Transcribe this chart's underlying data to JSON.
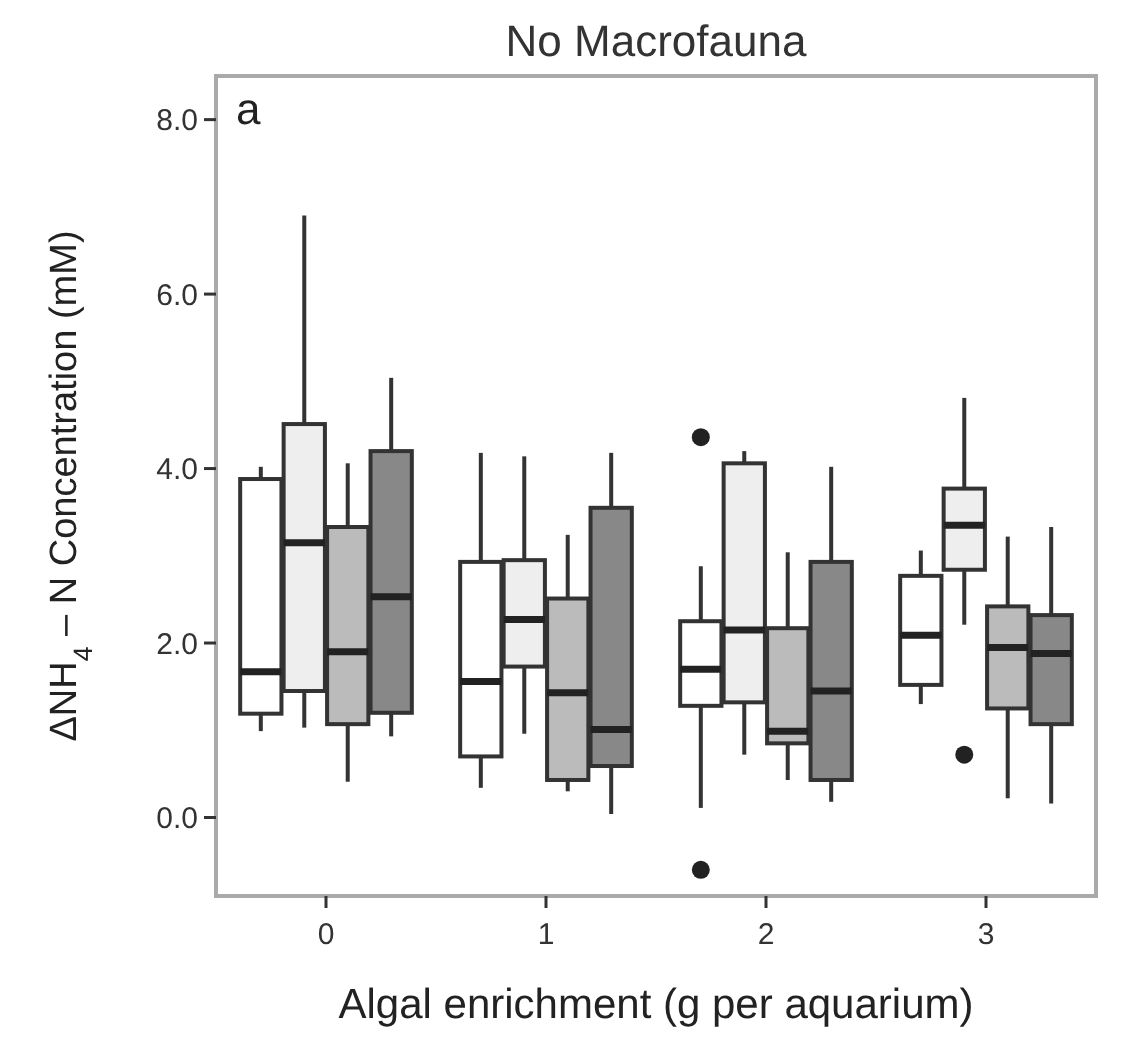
{
  "chart_data": {
    "type": "box",
    "title": "No Macrofauna",
    "xlabel": "Algal enrichment (g per aquarium)",
    "ylabel": "ΔNH$_{4}$ – N Concentration (mM)",
    "annotations": [
      "a"
    ],
    "categories": [
      "0",
      "1",
      "2",
      "3"
    ],
    "ylim": [
      -0.9,
      8.5
    ],
    "yticks": [
      {
        "value": 0,
        "label": "0.0"
      },
      {
        "value": 2,
        "label": "2.0"
      },
      {
        "value": 4,
        "label": "4.0"
      },
      {
        "value": 6,
        "label": "6.0"
      },
      {
        "value": 8,
        "label": "8.0"
      }
    ],
    "grid": false,
    "series": [
      {
        "color": "#ffffff",
        "boxes": [
          {
            "low": 0.99,
            "q1": 1.19,
            "median": 1.67,
            "q3": 3.88,
            "high": 4.02
          },
          {
            "low": 0.34,
            "q1": 0.7,
            "median": 1.56,
            "q3": 2.93,
            "high": 4.18
          },
          {
            "low": 0.11,
            "q1": 1.28,
            "median": 1.7,
            "q3": 2.25,
            "high": 2.88,
            "outliers": [
              4.36,
              -0.6
            ]
          },
          {
            "low": 1.3,
            "q1": 1.52,
            "median": 2.09,
            "q3": 2.77,
            "high": 3.06
          }
        ]
      },
      {
        "color": "#eeeeee",
        "boxes": [
          {
            "low": 1.03,
            "q1": 1.45,
            "median": 3.15,
            "q3": 4.51,
            "high": 6.9
          },
          {
            "low": 0.96,
            "q1": 1.73,
            "median": 2.27,
            "q3": 2.95,
            "high": 4.14
          },
          {
            "low": 0.72,
            "q1": 1.32,
            "median": 2.15,
            "q3": 4.06,
            "high": 4.2
          },
          {
            "low": 2.21,
            "q1": 2.84,
            "median": 3.35,
            "q3": 3.77,
            "high": 4.81,
            "outliers": [
              0.72
            ]
          }
        ]
      },
      {
        "color": "#bbbbbb",
        "boxes": [
          {
            "low": 0.41,
            "q1": 1.07,
            "median": 1.9,
            "q3": 3.33,
            "high": 4.06
          },
          {
            "low": 0.3,
            "q1": 0.43,
            "median": 1.43,
            "q3": 2.51,
            "high": 3.24
          },
          {
            "low": 0.43,
            "q1": 0.85,
            "median": 0.99,
            "q3": 2.17,
            "high": 3.04
          },
          {
            "low": 0.22,
            "q1": 1.25,
            "median": 1.95,
            "q3": 2.42,
            "high": 3.22
          }
        ]
      },
      {
        "color": "#888888",
        "boxes": [
          {
            "low": 0.93,
            "q1": 1.2,
            "median": 2.53,
            "q3": 4.2,
            "high": 5.04
          },
          {
            "low": 0.04,
            "q1": 0.59,
            "median": 1.01,
            "q3": 3.55,
            "high": 4.18
          },
          {
            "low": 0.18,
            "q1": 0.43,
            "median": 1.45,
            "q3": 2.93,
            "high": 4.02
          },
          {
            "low": 0.16,
            "q1": 1.07,
            "median": 1.88,
            "q3": 2.32,
            "high": 3.33
          }
        ]
      }
    ]
  }
}
